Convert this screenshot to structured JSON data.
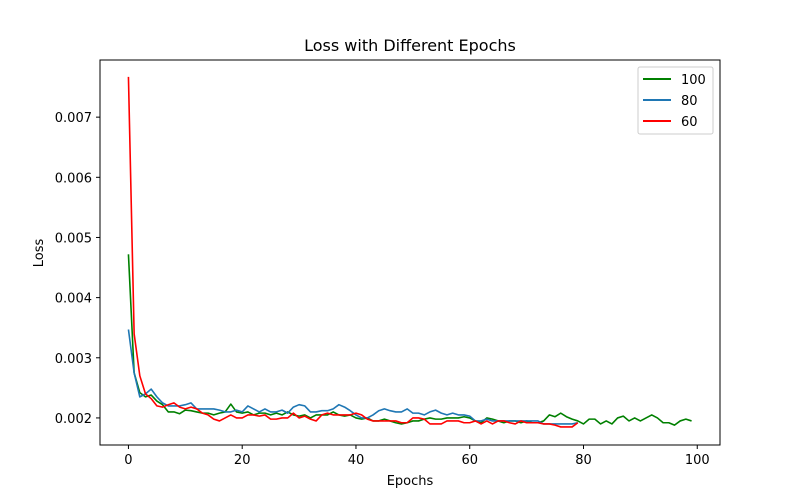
{
  "chart_data": {
    "type": "line",
    "title": "Loss with Different Epochs",
    "xlabel": "Epochs",
    "ylabel": "Loss",
    "xlim": [
      -5,
      104
    ],
    "ylim": [
      0.00155,
      0.00795
    ],
    "xticks": [
      0,
      20,
      40,
      60,
      80,
      100
    ],
    "xtick_labels": [
      "0",
      "20",
      "40",
      "60",
      "80",
      "100"
    ],
    "yticks": [
      0.002,
      0.003,
      0.004,
      0.005,
      0.006,
      0.007
    ],
    "ytick_labels": [
      "0.002",
      "0.003",
      "0.004",
      "0.005",
      "0.006",
      "0.007"
    ],
    "grid": false,
    "legend_position": "top-right",
    "series": [
      {
        "name": "100",
        "color": "#008000",
        "x": [
          0,
          1,
          2,
          3,
          4,
          5,
          6,
          7,
          8,
          9,
          10,
          11,
          12,
          13,
          14,
          15,
          16,
          17,
          18,
          19,
          20,
          21,
          22,
          23,
          24,
          25,
          26,
          27,
          28,
          29,
          30,
          31,
          32,
          33,
          34,
          35,
          36,
          37,
          38,
          39,
          40,
          41,
          42,
          43,
          44,
          45,
          46,
          47,
          48,
          49,
          50,
          51,
          52,
          53,
          54,
          55,
          56,
          57,
          58,
          59,
          60,
          61,
          62,
          63,
          64,
          65,
          66,
          67,
          68,
          69,
          70,
          71,
          72,
          73,
          74,
          75,
          76,
          77,
          78,
          79,
          80,
          81,
          82,
          83,
          84,
          85,
          86,
          87,
          88,
          89,
          90,
          91,
          92,
          93,
          94,
          95,
          96,
          97,
          98,
          99
        ],
        "values": [
          0.00472,
          0.00275,
          0.00242,
          0.00235,
          0.00238,
          0.00228,
          0.00222,
          0.0021,
          0.0021,
          0.00207,
          0.00213,
          0.00212,
          0.0021,
          0.00208,
          0.00208,
          0.00205,
          0.00208,
          0.0021,
          0.00223,
          0.0021,
          0.00208,
          0.0021,
          0.00205,
          0.00208,
          0.00208,
          0.00205,
          0.00208,
          0.00205,
          0.0021,
          0.00205,
          0.00203,
          0.00205,
          0.002,
          0.00205,
          0.00205,
          0.00205,
          0.0021,
          0.00205,
          0.00203,
          0.00205,
          0.002,
          0.00198,
          0.002,
          0.00195,
          0.00195,
          0.00198,
          0.00195,
          0.00192,
          0.0019,
          0.00192,
          0.00195,
          0.00195,
          0.00198,
          0.002,
          0.00198,
          0.00198,
          0.002,
          0.002,
          0.002,
          0.00202,
          0.002,
          0.00195,
          0.00192,
          0.002,
          0.00198,
          0.00195,
          0.00192,
          0.00195,
          0.00195,
          0.00192,
          0.00195,
          0.00192,
          0.00192,
          0.00195,
          0.00205,
          0.00202,
          0.00208,
          0.00202,
          0.00198,
          0.00195,
          0.0019,
          0.00198,
          0.00198,
          0.0019,
          0.00195,
          0.0019,
          0.002,
          0.00203,
          0.00195,
          0.002,
          0.00195,
          0.002,
          0.00205,
          0.002,
          0.00192,
          0.00192,
          0.00188,
          0.00195,
          0.00198,
          0.00195
        ]
      },
      {
        "name": "80",
        "color": "#1f77b4",
        "x": [
          0,
          1,
          2,
          3,
          4,
          5,
          6,
          7,
          8,
          9,
          10,
          11,
          12,
          13,
          14,
          15,
          16,
          17,
          18,
          19,
          20,
          21,
          22,
          23,
          24,
          25,
          26,
          27,
          28,
          29,
          30,
          31,
          32,
          33,
          34,
          35,
          36,
          37,
          38,
          39,
          40,
          41,
          42,
          43,
          44,
          45,
          46,
          47,
          48,
          49,
          50,
          51,
          52,
          53,
          54,
          55,
          56,
          57,
          58,
          59,
          60,
          61,
          62,
          63,
          64,
          65,
          66,
          67,
          68,
          69,
          70,
          71,
          72,
          73,
          74,
          75,
          76,
          77,
          78,
          79
        ],
        "values": [
          0.00347,
          0.00275,
          0.00235,
          0.0024,
          0.00248,
          0.00235,
          0.00225,
          0.0022,
          0.0022,
          0.0022,
          0.00222,
          0.00225,
          0.00215,
          0.00215,
          0.00215,
          0.00215,
          0.00213,
          0.0021,
          0.0021,
          0.00213,
          0.0021,
          0.0022,
          0.00215,
          0.0021,
          0.00215,
          0.0021,
          0.0021,
          0.00213,
          0.00208,
          0.00218,
          0.00222,
          0.0022,
          0.0021,
          0.0021,
          0.00212,
          0.00212,
          0.00215,
          0.00222,
          0.00218,
          0.00212,
          0.00205,
          0.002,
          0.002,
          0.00205,
          0.00212,
          0.00215,
          0.00212,
          0.0021,
          0.0021,
          0.00215,
          0.00208,
          0.00208,
          0.00205,
          0.0021,
          0.00213,
          0.00208,
          0.00205,
          0.00208,
          0.00205,
          0.00205,
          0.00203,
          0.00195,
          0.00195,
          0.00198,
          0.00195,
          0.00195,
          0.00195,
          0.00195,
          0.00195,
          0.00195,
          0.00195,
          0.00195,
          0.00195,
          0.0019,
          0.0019,
          0.0019,
          0.0019,
          0.0019,
          0.0019,
          0.00192
        ]
      },
      {
        "name": "60",
        "color": "#ff0000",
        "x": [
          0,
          1,
          2,
          3,
          4,
          5,
          6,
          7,
          8,
          9,
          10,
          11,
          12,
          13,
          14,
          15,
          16,
          17,
          18,
          19,
          20,
          21,
          22,
          23,
          24,
          25,
          26,
          27,
          28,
          29,
          30,
          31,
          32,
          33,
          34,
          35,
          36,
          37,
          38,
          39,
          40,
          41,
          42,
          43,
          44,
          45,
          46,
          47,
          48,
          49,
          50,
          51,
          52,
          53,
          54,
          55,
          56,
          57,
          58,
          59,
          60,
          61,
          62,
          63,
          64,
          65,
          66,
          67,
          68,
          69,
          70,
          71,
          72,
          73,
          74,
          75,
          76,
          77,
          78,
          79
        ],
        "values": [
          0.00767,
          0.0034,
          0.0027,
          0.0024,
          0.00232,
          0.0022,
          0.00218,
          0.00222,
          0.00225,
          0.00218,
          0.00215,
          0.00218,
          0.00215,
          0.00208,
          0.00205,
          0.00198,
          0.00195,
          0.002,
          0.00205,
          0.002,
          0.002,
          0.00205,
          0.00205,
          0.00203,
          0.00205,
          0.00198,
          0.00198,
          0.002,
          0.002,
          0.00208,
          0.002,
          0.00203,
          0.00198,
          0.00195,
          0.00205,
          0.00208,
          0.00205,
          0.00205,
          0.00205,
          0.00205,
          0.00208,
          0.00205,
          0.00198,
          0.00195,
          0.00195,
          0.00195,
          0.00195,
          0.00195,
          0.00192,
          0.00192,
          0.002,
          0.002,
          0.00198,
          0.0019,
          0.0019,
          0.0019,
          0.00195,
          0.00195,
          0.00195,
          0.00192,
          0.00192,
          0.00195,
          0.0019,
          0.00195,
          0.0019,
          0.00195,
          0.00195,
          0.00192,
          0.0019,
          0.00195,
          0.00192,
          0.00192,
          0.00192,
          0.0019,
          0.0019,
          0.00188,
          0.00185,
          0.00185,
          0.00185,
          0.00192
        ]
      }
    ]
  }
}
